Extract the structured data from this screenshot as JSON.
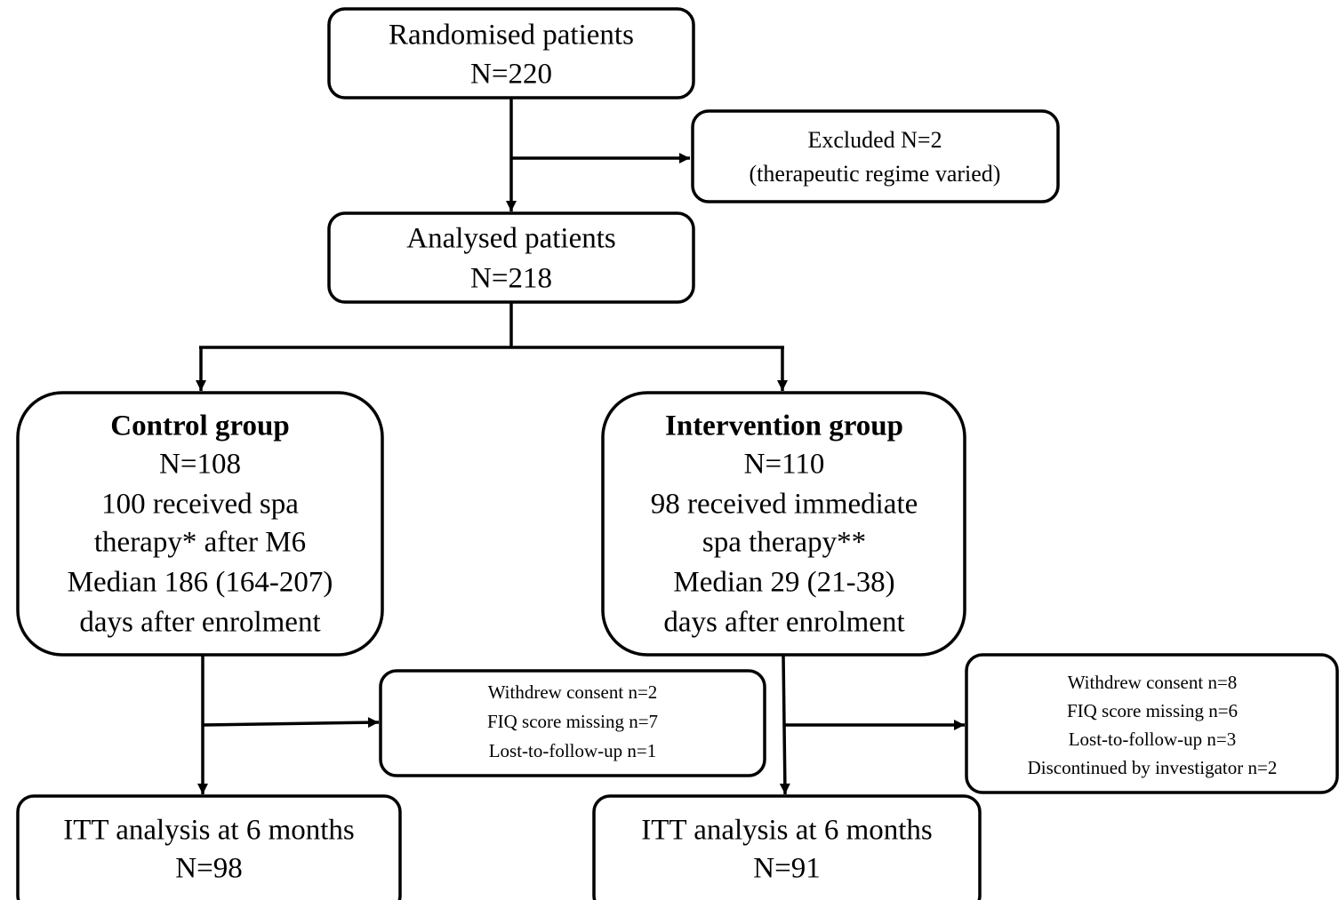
{
  "nodes": [
    {
      "lines": [
        "Randomised patients",
        "N=220"
      ]
    },
    {
      "lines": [
        "Excluded N=2",
        "(therapeutic regime varied)"
      ]
    },
    {
      "lines": [
        "Analysed patients",
        "N=218"
      ]
    },
    {
      "title": "Control group",
      "lines": [
        "N=108",
        "100 received spa",
        "therapy* after M6",
        "Median 186 (164-207)",
        "days after enrolment"
      ]
    },
    {
      "title": "Intervention group",
      "lines": [
        "N=110",
        "98 received immediate",
        "spa therapy**",
        "Median 29 (21-38)",
        "days after enrolment"
      ]
    },
    {
      "lines": [
        "Withdrew consent n=2",
        "FIQ score missing n=7",
        "Lost-to-follow-up n=1"
      ]
    },
    {
      "lines": [
        "Withdrew consent n=8",
        "FIQ score missing n=6",
        "Lost-to-follow-up n=3",
        "Discontinued by investigator n=2"
      ]
    },
    {
      "lines": [
        "ITT analysis at 6 months",
        "N=98"
      ]
    },
    {
      "lines": [
        "ITT analysis at 6 months",
        "N=91"
      ]
    }
  ]
}
